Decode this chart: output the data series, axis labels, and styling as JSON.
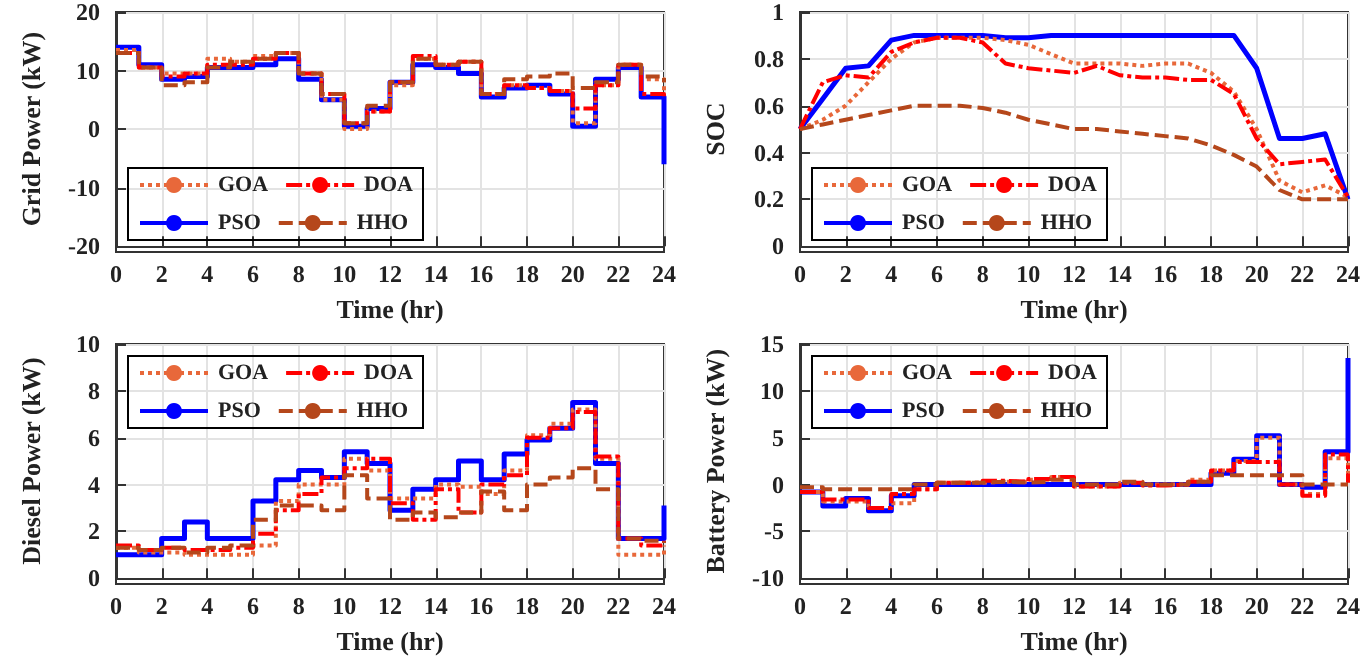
{
  "chart_data": [
    {
      "type": "step",
      "ylabel": "Grid Power (kW)",
      "xlabel": "Time (hr)",
      "x": [
        0,
        1,
        2,
        3,
        4,
        5,
        6,
        7,
        8,
        9,
        10,
        11,
        12,
        13,
        14,
        15,
        16,
        17,
        18,
        19,
        20,
        21,
        22,
        23,
        24
      ],
      "xlim": [
        0,
        24
      ],
      "xticks": [
        0,
        2,
        4,
        6,
        8,
        10,
        12,
        14,
        16,
        18,
        20,
        22,
        24
      ],
      "ylim": [
        -20,
        20
      ],
      "yticks": [
        -20,
        -10,
        0,
        10,
        20
      ],
      "grid": true,
      "legend": "bottom left",
      "series": [
        {
          "name": "GOA",
          "color": "#e8683a",
          "line_style": "dotted",
          "values": [
            13.5,
            10.5,
            9.5,
            9.5,
            12,
            11.5,
            12.5,
            13,
            9.5,
            5,
            0,
            3,
            7.5,
            12,
            11,
            11.5,
            6,
            7.5,
            7,
            6.5,
            1,
            7.5,
            11,
            8.5,
            6
          ]
        },
        {
          "name": "DOA",
          "color": "#ff0000",
          "line_style": "dashed",
          "values": [
            13,
            10.5,
            9,
            9.5,
            11,
            11,
            12,
            13,
            9.5,
            6,
            1,
            3,
            8,
            12.5,
            11,
            11.5,
            6,
            7.5,
            7,
            6.5,
            3.5,
            7.5,
            11,
            6,
            5
          ]
        },
        {
          "name": "PSO",
          "color": "#0000ff",
          "line_style": "solid",
          "values": [
            14,
            11,
            8.5,
            9,
            10.5,
            10.5,
            11,
            12,
            8.5,
            5,
            0.5,
            3.5,
            8,
            11,
            10.5,
            9.5,
            5.5,
            7,
            7.5,
            6,
            0.5,
            8.5,
            10.5,
            5.5,
            -6
          ]
        },
        {
          "name": "HHO",
          "color": "#b5471b",
          "line_style": "dashed",
          "values": [
            13,
            10.5,
            7.5,
            8,
            10.5,
            11.5,
            12,
            13,
            9.5,
            6,
            1,
            4,
            8,
            12,
            11,
            11.5,
            6,
            8.5,
            9,
            9.5,
            7,
            8,
            11,
            9,
            8
          ]
        }
      ]
    },
    {
      "type": "line",
      "ylabel": "SOC",
      "xlabel": "Time (hr)",
      "x": [
        0,
        1,
        2,
        3,
        4,
        5,
        6,
        7,
        8,
        9,
        10,
        11,
        12,
        13,
        14,
        15,
        16,
        17,
        18,
        19,
        20,
        21,
        22,
        23,
        24
      ],
      "xlim": [
        0,
        24
      ],
      "xticks": [
        0,
        2,
        4,
        6,
        8,
        10,
        12,
        14,
        16,
        18,
        20,
        22,
        24
      ],
      "ylim": [
        0,
        1
      ],
      "yticks": [
        0,
        0.2,
        0.4,
        0.6,
        0.8,
        1
      ],
      "grid": true,
      "legend": "bottom left",
      "series": [
        {
          "name": "GOA",
          "color": "#e8683a",
          "line_style": "dotted",
          "values": [
            0.5,
            0.54,
            0.6,
            0.7,
            0.8,
            0.87,
            0.89,
            0.89,
            0.89,
            0.88,
            0.86,
            0.82,
            0.78,
            0.78,
            0.78,
            0.77,
            0.78,
            0.78,
            0.74,
            0.66,
            0.5,
            0.28,
            0.23,
            0.26,
            0.21
          ]
        },
        {
          "name": "DOA",
          "color": "#ff0000",
          "line_style": "dashed",
          "values": [
            0.5,
            0.7,
            0.73,
            0.72,
            0.83,
            0.87,
            0.89,
            0.89,
            0.87,
            0.78,
            0.76,
            0.75,
            0.74,
            0.77,
            0.73,
            0.72,
            0.72,
            0.71,
            0.71,
            0.65,
            0.46,
            0.35,
            0.36,
            0.37,
            0.21
          ]
        },
        {
          "name": "PSO",
          "color": "#0000ff",
          "line_style": "solid",
          "values": [
            0.5,
            0.63,
            0.76,
            0.77,
            0.88,
            0.9,
            0.9,
            0.9,
            0.9,
            0.89,
            0.89,
            0.9,
            0.9,
            0.9,
            0.9,
            0.9,
            0.9,
            0.9,
            0.9,
            0.9,
            0.76,
            0.46,
            0.46,
            0.48,
            0.2
          ]
        },
        {
          "name": "HHO",
          "color": "#b5471b",
          "line_style": "dashed",
          "values": [
            0.5,
            0.52,
            0.54,
            0.56,
            0.58,
            0.6,
            0.6,
            0.6,
            0.59,
            0.57,
            0.54,
            0.52,
            0.5,
            0.5,
            0.49,
            0.48,
            0.47,
            0.46,
            0.43,
            0.39,
            0.34,
            0.24,
            0.2,
            0.2,
            0.2
          ]
        }
      ]
    },
    {
      "type": "step",
      "ylabel": "Diesel Power (kW)",
      "xlabel": "Time (hr)",
      "x": [
        0,
        1,
        2,
        3,
        4,
        5,
        6,
        7,
        8,
        9,
        10,
        11,
        12,
        13,
        14,
        15,
        16,
        17,
        18,
        19,
        20,
        21,
        22,
        23,
        24
      ],
      "xlim": [
        0,
        24
      ],
      "xticks": [
        0,
        2,
        4,
        6,
        8,
        10,
        12,
        14,
        16,
        18,
        20,
        22,
        24
      ],
      "ylim": [
        0,
        10
      ],
      "yticks": [
        0,
        2,
        4,
        6,
        8,
        10
      ],
      "grid": true,
      "legend": "top left",
      "series": [
        {
          "name": "GOA",
          "color": "#e8683a",
          "line_style": "dotted",
          "values": [
            1.3,
            1.1,
            1.1,
            1,
            1,
            1,
            1.4,
            3.3,
            4,
            4,
            5.1,
            4.6,
            3.4,
            3.4,
            4,
            3.9,
            3.6,
            4.6,
            6.1,
            6.6,
            7.2,
            5.1,
            1,
            1,
            1.4
          ]
        },
        {
          "name": "DOA",
          "color": "#ff0000",
          "line_style": "dashed",
          "values": [
            1.4,
            1.2,
            1.3,
            1.2,
            1.2,
            1.3,
            1.9,
            2.9,
            3.6,
            4.3,
            4.7,
            5.1,
            3.2,
            2.5,
            3.8,
            2.8,
            4,
            4.4,
            6,
            6.4,
            7.1,
            5.2,
            1.7,
            1.4,
            1.6
          ]
        },
        {
          "name": "PSO",
          "color": "#0000ff",
          "line_style": "solid",
          "values": [
            1,
            1,
            1.7,
            2.4,
            1.7,
            1.7,
            3.3,
            4.2,
            4.6,
            4.3,
            5.4,
            4.9,
            2.9,
            3.8,
            4.2,
            5,
            4.2,
            5.3,
            5.9,
            6.4,
            7.5,
            4.9,
            1.7,
            1.7,
            3.1
          ]
        },
        {
          "name": "HHO",
          "color": "#b5471b",
          "line_style": "dashed",
          "values": [
            1.3,
            1.2,
            1.3,
            1.1,
            1.3,
            1.4,
            2.5,
            3.1,
            3.1,
            2.9,
            4.4,
            3.4,
            2.5,
            2.8,
            2.6,
            2.8,
            3.7,
            2.9,
            4,
            4.3,
            4.7,
            3.8,
            1.7,
            1.6,
            1.5
          ]
        }
      ]
    },
    {
      "type": "step",
      "ylabel": "Battery Power (kW)",
      "xlabel": "Time (hr)",
      "x": [
        0,
        1,
        2,
        3,
        4,
        5,
        6,
        7,
        8,
        9,
        10,
        11,
        12,
        13,
        14,
        15,
        16,
        17,
        18,
        19,
        20,
        21,
        22,
        23,
        24
      ],
      "xlim": [
        0,
        24
      ],
      "xticks": [
        0,
        2,
        4,
        6,
        8,
        10,
        12,
        14,
        16,
        18,
        20,
        22,
        24
      ],
      "ylim": [
        -10,
        15
      ],
      "yticks": [
        -10,
        -5,
        0,
        5,
        10,
        15
      ],
      "grid": true,
      "legend": "top left",
      "series": [
        {
          "name": "GOA",
          "color": "#e8683a",
          "line_style": "dotted",
          "values": [
            -0.8,
            -1.8,
            -1.8,
            -2.5,
            -2,
            -0.5,
            0.2,
            0.2,
            0.3,
            0.3,
            0.5,
            0.8,
            -0.2,
            -0.2,
            0.2,
            0,
            0,
            0.5,
            1.5,
            2.5,
            5,
            0,
            -1,
            2.8,
            1.2
          ]
        },
        {
          "name": "DOA",
          "color": "#ff0000",
          "line_style": "dashed",
          "values": [
            -0.8,
            -1.6,
            -1.6,
            -2.5,
            -1,
            -0.5,
            0.2,
            0.2,
            0.4,
            0.3,
            0.6,
            0.8,
            -0.2,
            -0.2,
            0.2,
            -0.1,
            0,
            0.3,
            1.5,
            2.4,
            2.4,
            0,
            -1.2,
            3.2,
            0.2
          ]
        },
        {
          "name": "PSO",
          "color": "#0000ff",
          "line_style": "solid",
          "values": [
            -0.8,
            -2.3,
            -1.5,
            -2.8,
            -1.2,
            0,
            0,
            0,
            0,
            0,
            0,
            0,
            0,
            0,
            0,
            0,
            0,
            0,
            1.2,
            2.7,
            5.2,
            0,
            -0.3,
            3.5,
            13.5
          ]
        },
        {
          "name": "HHO",
          "color": "#b5471b",
          "line_style": "dashed",
          "values": [
            -0.3,
            -0.5,
            -0.5,
            -0.5,
            -0.5,
            0,
            0.2,
            0.2,
            0.3,
            0.2,
            0.3,
            0.5,
            0,
            0,
            0.3,
            0,
            0,
            0.3,
            1,
            1,
            1,
            1,
            0,
            0,
            0
          ]
        }
      ]
    }
  ]
}
